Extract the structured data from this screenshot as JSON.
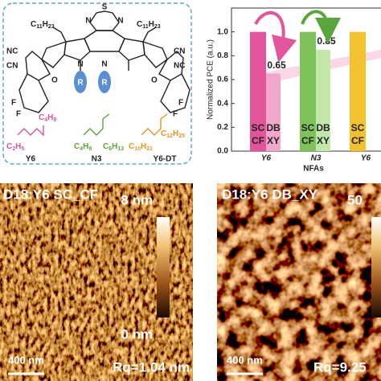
{
  "chemical_structure": {
    "atoms": [
      "S",
      "N",
      "N",
      "N",
      "N",
      "R",
      "R",
      "NC",
      "CN",
      "O",
      "O",
      "F",
      "F",
      "F",
      "F",
      "CN",
      "NC"
    ],
    "alkyl_left": [
      "C",
      "11",
      "H",
      "23"
    ],
    "alkyl_right": [
      "C",
      "11",
      "H",
      "23"
    ],
    "side_chains": [
      {
        "name": "Y6",
        "color": "#d6589c",
        "chains": [
          [
            "C",
            "2",
            "H",
            "5"
          ],
          [
            "C",
            "4",
            "H",
            "9"
          ]
        ]
      },
      {
        "name": "N3",
        "color": "#5aa63c",
        "chains": [
          [
            "C",
            "4",
            "H",
            "9"
          ],
          [
            "C",
            "6",
            "H",
            "13"
          ]
        ]
      },
      {
        "name": "Y6-DT",
        "color": "#e6951e",
        "chains": [
          [
            "C",
            "10",
            "H",
            "21"
          ],
          [
            "C",
            "12",
            "H",
            "25"
          ]
        ]
      }
    ]
  },
  "chart_data": {
    "type": "bar",
    "y_label": "Normalized PCE (a.u.)",
    "x_label": "NFAs",
    "categories": [
      "Y6",
      "N3",
      "Y6"
    ],
    "series": [
      {
        "name_lines": [
          "SC",
          "CF"
        ],
        "colors": [
          "#e2559a",
          "#7dc35a",
          "#f2c12e"
        ],
        "values": [
          1,
          1,
          1
        ]
      },
      {
        "name_lines": [
          "DB",
          "XY"
        ],
        "colors": [
          "#f3a6cb",
          "#c3e6ab",
          "#f8df8f"
        ],
        "values": [
          0.65,
          0.85,
          null
        ]
      }
    ],
    "ylim": [
      0,
      1.2
    ],
    "yticks": [
      {
        "value": 0,
        "label": "0.0"
      },
      {
        "value": 0.2,
        "label": "0.2"
      },
      {
        "value": 0.4,
        "label": "0.4"
      },
      {
        "value": 0.6,
        "label": "0.6"
      },
      {
        "value": 0.8,
        "label": "0.8"
      },
      {
        "value": 1,
        "label": "1.0"
      }
    ]
  },
  "afm_images": [
    {
      "title": "D18:Y6 SC_CF",
      "scale_max": "8 nm",
      "scale_min": "0 nm",
      "scale_bar": "400 nm",
      "roughness": "Rq=1.04 nm"
    },
    {
      "title": "D18:Y6 DB_XY",
      "scale_max": "50",
      "scale_bar": "400 nm",
      "roughness": "Rq=9.25"
    }
  ]
}
